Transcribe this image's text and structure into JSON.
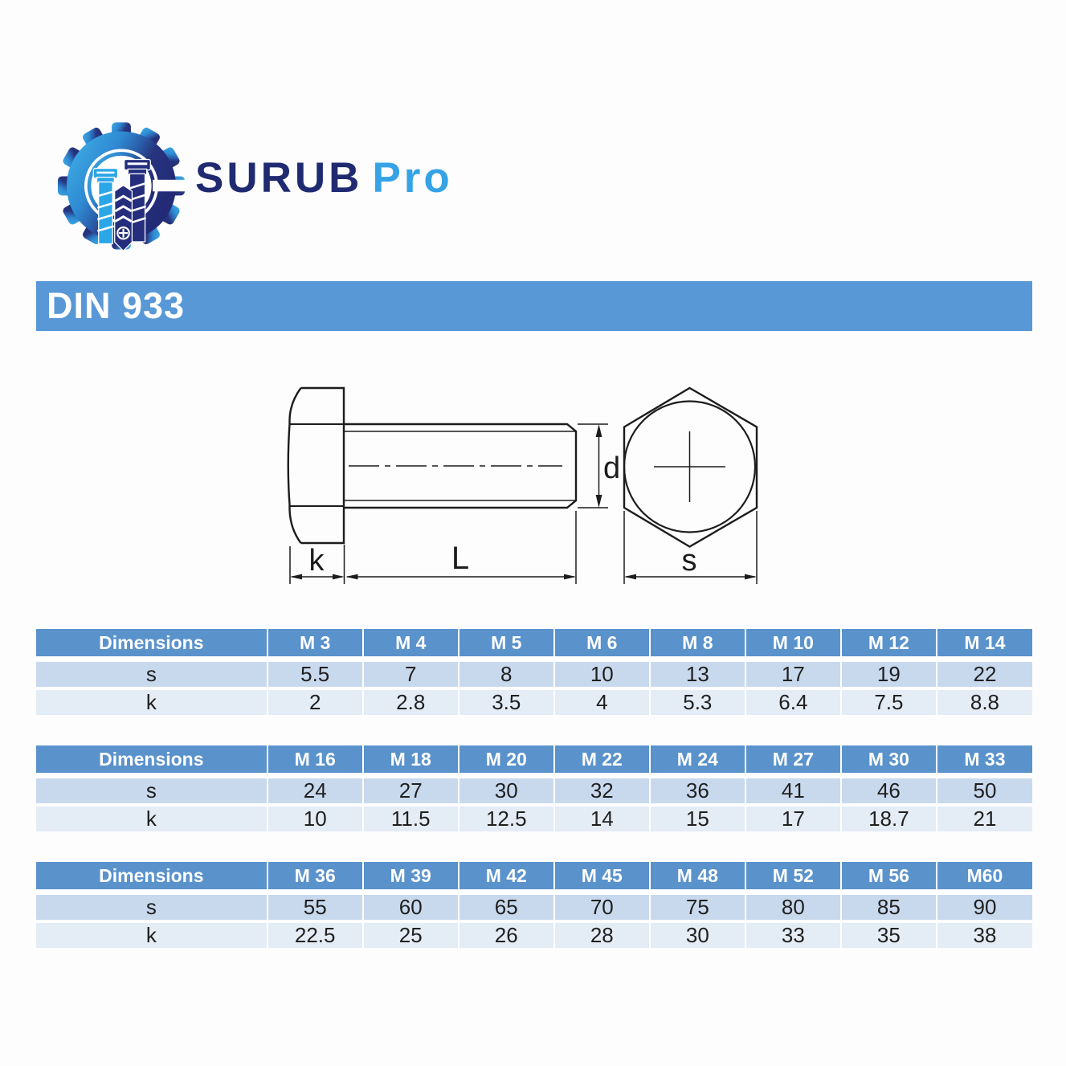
{
  "logo": {
    "brand": "SURUB",
    "suffix": "Pro",
    "colors": {
      "navy": "#232b77",
      "light_blue": "#35a3e6",
      "medium_blue": "#2b62ae"
    }
  },
  "banner": {
    "title": "DIN 933",
    "bg": "#5998d6"
  },
  "drawing": {
    "labels": {
      "head_height": "k",
      "length": "L",
      "diameter": "d",
      "width_across_flats": "s"
    }
  },
  "table_style": {
    "header_bg": "#5a92cc",
    "row_s_bg": "#c9d9ed",
    "row_k_bg": "#e4ecf6"
  },
  "tables": [
    {
      "header": [
        "Dimensions",
        "M 3",
        "M 4",
        "M 5",
        "M 6",
        "M 8",
        "M 10",
        "M 12",
        "M 14"
      ],
      "rows": [
        {
          "label": "s",
          "values": [
            "5.5",
            "7",
            "8",
            "10",
            "13",
            "17",
            "19",
            "22"
          ]
        },
        {
          "label": "k",
          "values": [
            "2",
            "2.8",
            "3.5",
            "4",
            "5.3",
            "6.4",
            "7.5",
            "8.8"
          ]
        }
      ]
    },
    {
      "header": [
        "Dimensions",
        "M 16",
        "M 18",
        "M 20",
        "M 22",
        "M 24",
        "M 27",
        "M 30",
        "M 33"
      ],
      "rows": [
        {
          "label": "s",
          "values": [
            "24",
            "27",
            "30",
            "32",
            "36",
            "41",
            "46",
            "50"
          ]
        },
        {
          "label": "k",
          "values": [
            "10",
            "11.5",
            "12.5",
            "14",
            "15",
            "17",
            "18.7",
            "21"
          ]
        }
      ]
    },
    {
      "header": [
        "Dimensions",
        "M 36",
        "M 39",
        "M 42",
        "M 45",
        "M 48",
        "M 52",
        "M 56",
        "M60"
      ],
      "rows": [
        {
          "label": "s",
          "values": [
            "55",
            "60",
            "65",
            "70",
            "75",
            "80",
            "85",
            "90"
          ]
        },
        {
          "label": "k",
          "values": [
            "22.5",
            "25",
            "26",
            "28",
            "30",
            "33",
            "35",
            "38"
          ]
        }
      ]
    }
  ]
}
